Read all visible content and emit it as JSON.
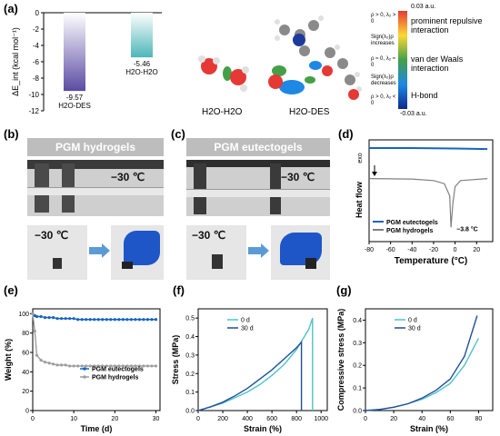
{
  "panels": {
    "a": "(a)",
    "b": "(b)",
    "c": "(c)",
    "d": "(d)",
    "e": "(e)",
    "f": "(f)",
    "g": "(g)"
  },
  "panel_a": {
    "molecule_labels": [
      "H2O-H2O",
      "H2O-DES"
    ],
    "colorbar_top": "0.03 a.u.",
    "colorbar_bottom": "-0.03 a.u.",
    "colorbar_notes": [
      "ρ > 0, λ₂ > 0",
      "Sign(λ₂)ρ increases",
      "ρ ≈ 0, λ₂ ≈ 0",
      "Sign(λ₂)ρ decreases",
      "ρ > 0, λ₂ < 0"
    ],
    "interaction_labels": [
      "prominent repulsive interaction",
      "van der Waals interaction",
      "H-bond"
    ],
    "colorbar_colors": [
      "#e53935",
      "#fdd835",
      "#43a047",
      "#1e88e5",
      "#0d2a8a"
    ]
  },
  "panel_b": {
    "banner": "PGM hydrogels",
    "temp_top": "−30 ℃",
    "temp_bottom": "−30 ℃"
  },
  "panel_c": {
    "banner": "PGM eutectogels",
    "temp_top": "−30 ℃",
    "temp_bottom": "−30 ℃"
  },
  "chart_data": [
    {
      "id": "a",
      "type": "bar",
      "categories": [
        "H2O-DES",
        "H2O-H2O"
      ],
      "values": [
        -9.57,
        -5.46
      ],
      "value_labels": [
        "-9.57",
        "-5.46"
      ],
      "ylabel": "ΔE_int (kcal mol⁻¹)",
      "ylim": [
        -12,
        0
      ],
      "yticks": [
        0,
        -2,
        -4,
        -6,
        -8,
        -10,
        -12
      ],
      "colors": [
        "#5b4ba3",
        "#4db6b8"
      ]
    },
    {
      "id": "d",
      "type": "line",
      "xlabel": "Temperature (°C)",
      "ylabel": "Heat flow",
      "exo_label": "exo",
      "xlim": [
        -80,
        35
      ],
      "xticks": [
        -80,
        -60,
        -40,
        -20,
        0,
        20
      ],
      "annotation": "−3.8 °C",
      "legend": "bottom-left",
      "series": [
        {
          "name": "PGM eutectogels",
          "color": "#1565c0",
          "x": [
            -80,
            -40,
            0,
            30
          ],
          "y": [
            0.92,
            0.92,
            0.915,
            0.91
          ]
        },
        {
          "name": "PGM hydrogels",
          "color": "#808080",
          "x": [
            -80,
            -40,
            -20,
            -10,
            -5,
            -3.8,
            -2,
            0,
            5,
            30
          ],
          "y": [
            0.62,
            0.615,
            0.6,
            0.57,
            0.45,
            0.14,
            0.38,
            0.54,
            0.6,
            0.62
          ]
        }
      ]
    },
    {
      "id": "e",
      "type": "line",
      "xlabel": "Time (d)",
      "ylabel": "Weight (%)",
      "xlim": [
        0,
        31
      ],
      "ylim": [
        0,
        105
      ],
      "xticks": [
        0,
        10,
        20,
        30
      ],
      "yticks": [
        0,
        20,
        40,
        60,
        80,
        100
      ],
      "legend": "bottom-right",
      "series": [
        {
          "name": "PGM eutectogels",
          "color": "#1565c0",
          "x": [
            0,
            0.5,
            1,
            2,
            3,
            4,
            5,
            6,
            7,
            8,
            9,
            10,
            11,
            12,
            13,
            14,
            15,
            16,
            17,
            18,
            19,
            20,
            21,
            22,
            23,
            24,
            25,
            26,
            27,
            28,
            29,
            30
          ],
          "y": [
            100,
            98,
            97,
            97,
            96,
            96,
            96,
            95,
            95,
            95,
            95,
            95,
            94,
            94,
            94,
            94,
            94,
            94,
            94,
            94,
            94,
            94,
            94,
            94,
            94,
            94,
            94,
            94,
            94,
            94,
            94,
            94
          ]
        },
        {
          "name": "PGM hydrogels",
          "color": "#9e9e9e",
          "x": [
            0,
            0.5,
            1,
            2,
            3,
            4,
            5,
            6,
            7,
            8,
            9,
            10,
            11,
            12,
            13,
            14,
            15,
            16,
            17,
            18,
            19,
            20,
            21,
            22,
            23,
            24,
            25,
            26,
            27,
            28,
            29,
            30
          ],
          "y": [
            100,
            82,
            57,
            52,
            50,
            49,
            48,
            47,
            47,
            47,
            46,
            46,
            46,
            46,
            46,
            46,
            46,
            46,
            46,
            46,
            46,
            46,
            46,
            46,
            46,
            46,
            46,
            46,
            46,
            46,
            46,
            46
          ]
        }
      ]
    },
    {
      "id": "f",
      "type": "line",
      "xlabel": "Strain (%)",
      "ylabel": "Stress (MPa)",
      "xlim": [
        0,
        1050
      ],
      "ylim": [
        0,
        0.55
      ],
      "xticks": [
        0,
        200,
        400,
        600,
        800,
        1000
      ],
      "yticks": [
        0.0,
        0.1,
        0.2,
        0.3,
        0.4,
        0.5
      ],
      "legend": "top-center",
      "series": [
        {
          "name": "0 d",
          "color": "#4fc3c8",
          "x": [
            0,
            100,
            200,
            300,
            400,
            500,
            600,
            700,
            800,
            900,
            930,
            930
          ],
          "y": [
            0,
            0.02,
            0.04,
            0.07,
            0.1,
            0.14,
            0.19,
            0.25,
            0.33,
            0.44,
            0.5,
            0
          ]
        },
        {
          "name": "30 d",
          "color": "#1f4e9c",
          "x": [
            0,
            100,
            200,
            300,
            400,
            500,
            600,
            700,
            800,
            840,
            840
          ],
          "y": [
            0,
            0.02,
            0.045,
            0.08,
            0.12,
            0.17,
            0.22,
            0.28,
            0.34,
            0.37,
            0
          ]
        }
      ]
    },
    {
      "id": "g",
      "type": "line",
      "xlabel": "Strain (%)",
      "ylabel": "Compressive stress (MPa)",
      "xlim": [
        0,
        90
      ],
      "ylim": [
        0,
        0.45
      ],
      "xticks": [
        0,
        20,
        40,
        60,
        80
      ],
      "yticks": [
        0.0,
        0.1,
        0.2,
        0.3,
        0.4
      ],
      "legend": "top-center",
      "series": [
        {
          "name": "0 d",
          "color": "#4fc3c8",
          "x": [
            0,
            10,
            20,
            30,
            40,
            50,
            60,
            70,
            80
          ],
          "y": [
            0,
            0.005,
            0.015,
            0.03,
            0.05,
            0.08,
            0.12,
            0.2,
            0.32
          ]
        },
        {
          "name": "30 d",
          "color": "#1f4e9c",
          "x": [
            0,
            10,
            20,
            30,
            40,
            50,
            60,
            70,
            79
          ],
          "y": [
            0,
            0.005,
            0.015,
            0.03,
            0.055,
            0.09,
            0.14,
            0.24,
            0.42
          ]
        }
      ]
    }
  ]
}
